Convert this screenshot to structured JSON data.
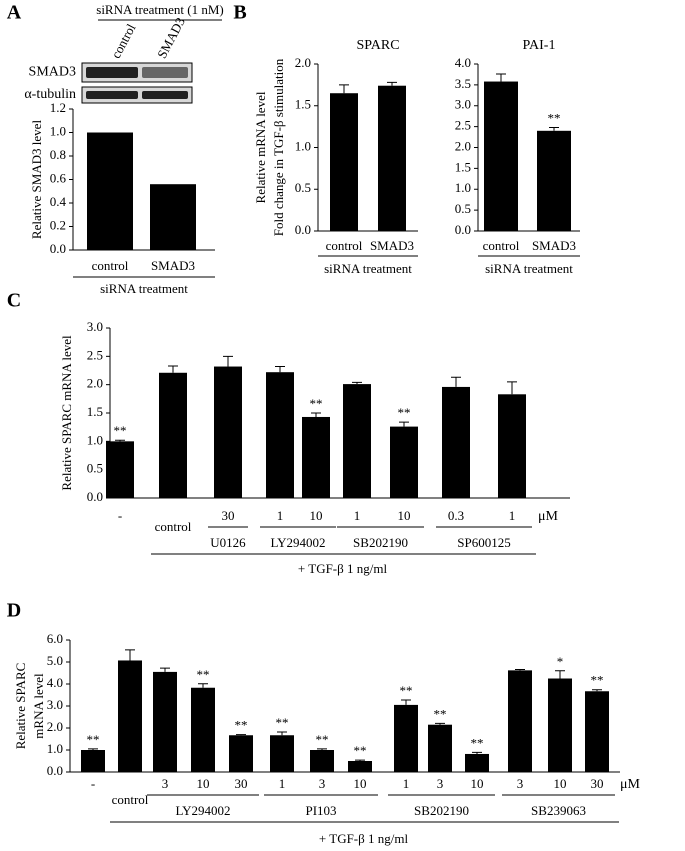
{
  "chart_data": [
    {
      "type": "bar",
      "label": "A",
      "blot": {
        "title": "siRNA treatment (1 nM)",
        "lanes": [
          "control",
          "SMAD3"
        ],
        "rows": [
          "SMAD3",
          "α-tubulin"
        ]
      },
      "ylabel": [
        "Relative SMAD3 level"
      ],
      "categories": [
        "control",
        "SMAD3"
      ],
      "values": [
        1.0,
        0.56
      ],
      "ylim": [
        0,
        1.2
      ],
      "yticks": [
        {
          "value": 0,
          "label": "0.0"
        },
        0.2,
        0.4,
        0.6,
        0.8,
        {
          "value": 1,
          "label": "1.0"
        },
        1.2
      ],
      "color": "#000000",
      "xlabel": "siRNA treatment"
    },
    {
      "type": "bar",
      "label": "B",
      "title": "SPARC",
      "ylabel": [
        "Relative mRNA level",
        "Fold change in TGF-β stimulation"
      ],
      "categories": [
        "control",
        "SMAD3"
      ],
      "values": [
        1.65,
        1.74
      ],
      "errors": [
        0.1,
        0.04
      ],
      "ylim": [
        0,
        2
      ],
      "yticks": [
        {
          "value": 0,
          "label": "0.0"
        },
        0.5,
        {
          "value": 1,
          "label": "1.0"
        },
        1.5,
        {
          "value": 2,
          "label": "2.0"
        }
      ],
      "color": "#000000",
      "xlabel": "siRNA treatment"
    },
    {
      "type": "bar",
      "title": "PAI-1",
      "categories": [
        "control",
        "SMAD3"
      ],
      "values": [
        3.58,
        2.4
      ],
      "errors": [
        0.18,
        0.08
      ],
      "annotations": [
        {
          "index": 1,
          "text": "**"
        }
      ],
      "ylim": [
        0,
        4
      ],
      "yticks": [
        {
          "value": 0,
          "label": "0.0"
        },
        0.5,
        {
          "value": 1,
          "label": "1.0"
        },
        1.5,
        {
          "value": 2,
          "label": "2.0"
        },
        2.5,
        {
          "value": 3,
          "label": "3.0"
        },
        3.5,
        {
          "value": 4,
          "label": "4.0"
        }
      ],
      "color": "#000000",
      "xlabel": "siRNA treatment"
    },
    {
      "type": "bar",
      "label": "C",
      "ylabel": [
        "Relative SPARC mRNA level"
      ],
      "categories": [
        "-",
        "control",
        "30",
        "1",
        "10",
        "1",
        "10",
        "0.3",
        "1"
      ],
      "values": [
        1.0,
        2.21,
        2.32,
        2.22,
        1.43,
        2.01,
        1.26,
        1.96,
        1.83
      ],
      "errors": [
        0.02,
        0.12,
        0.18,
        0.1,
        0.07,
        0.03,
        0.08,
        0.17,
        0.22
      ],
      "annotations": [
        {
          "index": 0,
          "text": "**"
        },
        {
          "index": 4,
          "text": "**"
        },
        {
          "index": 6,
          "text": "**"
        }
      ],
      "groups": [
        {
          "name": "U0126",
          "start": 2,
          "end": 2
        },
        {
          "name": "LY294002",
          "start": 3,
          "end": 4
        },
        {
          "name": "SB202190",
          "start": 5,
          "end": 6
        },
        {
          "name": "SP600125",
          "start": 7,
          "end": 8
        }
      ],
      "unit": "μM",
      "xlabel": "+ TGF-β 1 ng/ml",
      "ylim": [
        0,
        3
      ],
      "yticks": [
        {
          "value": 0,
          "label": "0.0"
        },
        0.5,
        {
          "value": 1,
          "label": "1.0"
        },
        1.5,
        {
          "value": 2,
          "label": "2.0"
        },
        2.5,
        {
          "value": 3,
          "label": "3.0"
        }
      ],
      "color": "#000000"
    },
    {
      "type": "bar",
      "label": "D",
      "ylabel": [
        "Relative SPARC",
        "mRNA level"
      ],
      "categories": [
        "-",
        "control",
        "3",
        "10",
        "30",
        "1",
        "3",
        "10",
        "1",
        "3",
        "10",
        "3",
        "10",
        "30"
      ],
      "values": [
        1.0,
        5.07,
        4.55,
        3.83,
        1.67,
        1.67,
        1.0,
        0.5,
        3.05,
        2.15,
        0.82,
        4.62,
        4.25,
        3.67
      ],
      "errors": [
        0.05,
        0.48,
        0.17,
        0.18,
        0.03,
        0.15,
        0.05,
        0.04,
        0.22,
        0.06,
        0.07,
        0.04,
        0.35,
        0.07
      ],
      "annotations": [
        {
          "index": 0,
          "text": "**"
        },
        {
          "index": 3,
          "text": "**"
        },
        {
          "index": 4,
          "text": "**"
        },
        {
          "index": 5,
          "text": "**"
        },
        {
          "index": 6,
          "text": "**"
        },
        {
          "index": 7,
          "text": "**"
        },
        {
          "index": 8,
          "text": "**"
        },
        {
          "index": 9,
          "text": "**"
        },
        {
          "index": 10,
          "text": "**"
        },
        {
          "index": 12,
          "text": "*"
        },
        {
          "index": 13,
          "text": "**"
        }
      ],
      "groups": [
        {
          "name": "LY294002",
          "start": 2,
          "end": 4
        },
        {
          "name": "PI103",
          "start": 5,
          "end": 7
        },
        {
          "name": "SB202190",
          "start": 8,
          "end": 10
        },
        {
          "name": "SB239063",
          "start": 11,
          "end": 13
        }
      ],
      "unit": "μM",
      "xlabel": "+ TGF-β 1 ng/ml",
      "ylim": [
        0,
        6
      ],
      "yticks": [
        {
          "value": 0,
          "label": "0.0"
        },
        {
          "value": 1,
          "label": "1.0"
        },
        {
          "value": 2,
          "label": "2.0"
        },
        {
          "value": 3,
          "label": "3.0"
        },
        {
          "value": 4,
          "label": "4.0"
        },
        {
          "value": 5,
          "label": "5.0"
        },
        {
          "value": 6,
          "label": "6.0"
        }
      ],
      "color": "#000000"
    }
  ]
}
